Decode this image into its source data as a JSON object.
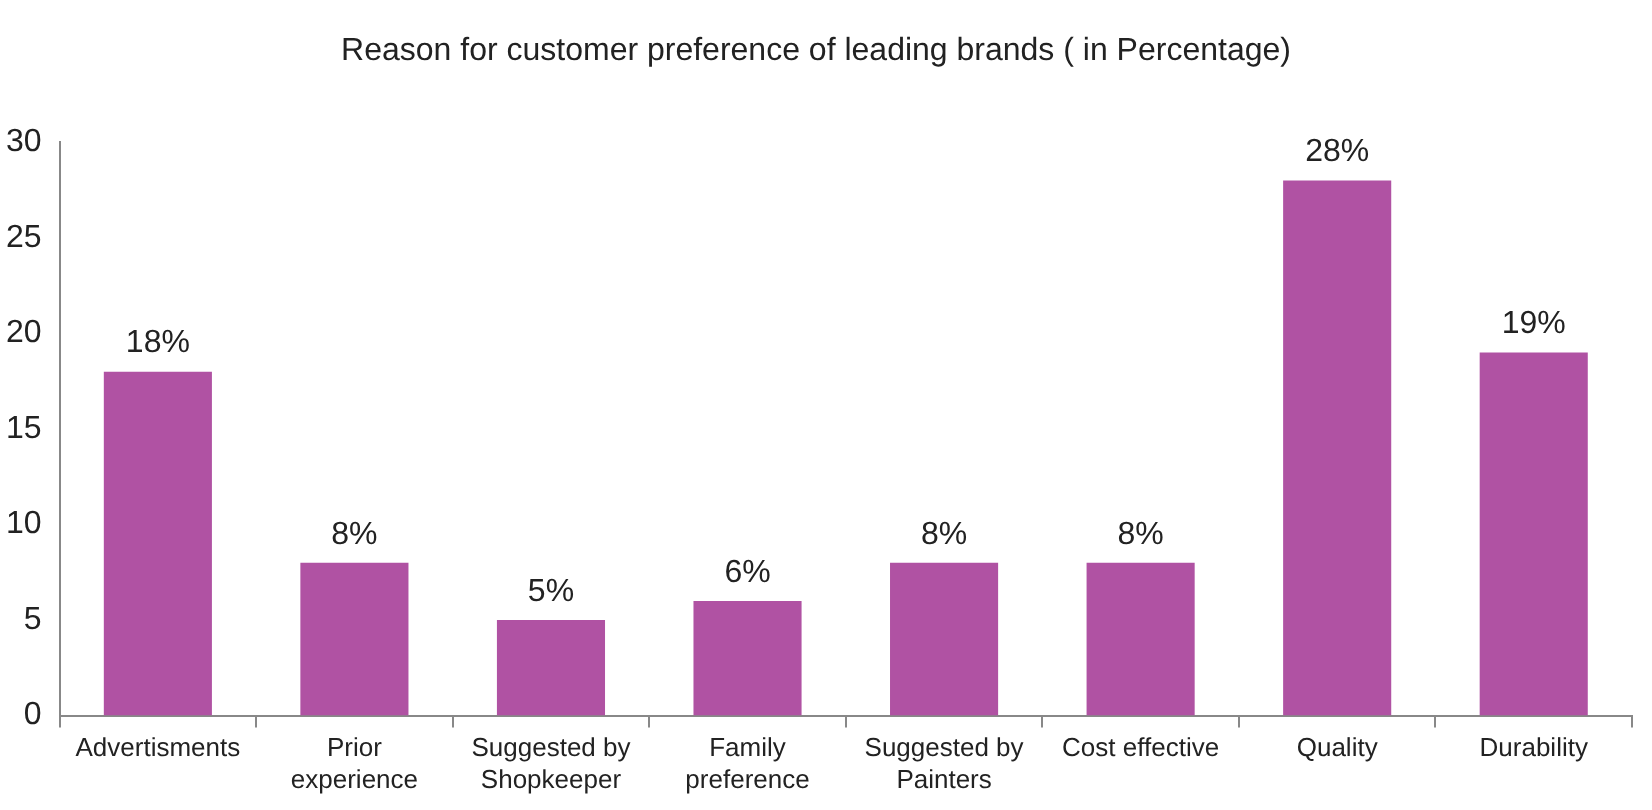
{
  "chart_data": {
    "type": "bar",
    "title": "Reason for customer preference of leading brands ( in Percentage)",
    "categories": [
      "Advertisments",
      "Prior experience",
      "Suggested by Shopkeeper",
      "Family preference",
      "Suggested by Painters",
      "Cost effective",
      "Quality",
      "Durability"
    ],
    "values": [
      18,
      8,
      5,
      6,
      8,
      8,
      28,
      19
    ],
    "value_labels": [
      "18%",
      "8%",
      "5%",
      "6%",
      "8%",
      "8%",
      "28%",
      "19%"
    ],
    "color": "#b052a3",
    "ylim": [
      0,
      30
    ],
    "yticks": [
      0,
      5,
      10,
      15,
      20,
      25,
      30
    ],
    "grid": false,
    "legend": false
  }
}
